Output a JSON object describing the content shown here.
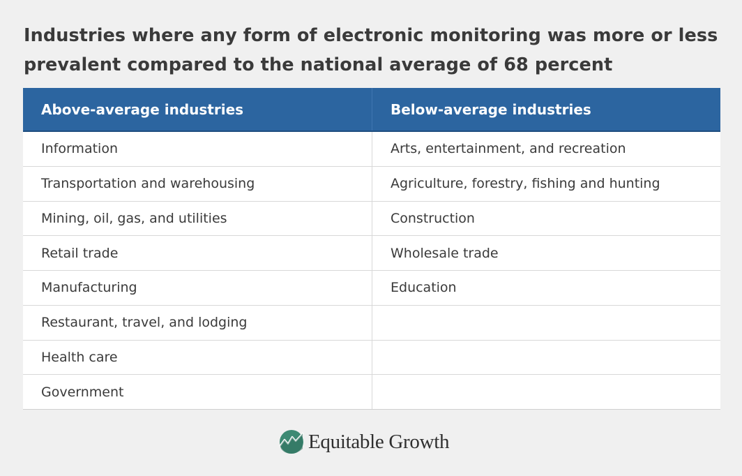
{
  "title": "Industries where any form of electronic monitoring was more or less prevalent compared to the national average of 68 percent",
  "table": {
    "headers": [
      "Above-average industries",
      "Below-average industries"
    ],
    "rows": [
      [
        "Information",
        "Arts, entertainment, and recreation"
      ],
      [
        "Transportation and warehousing",
        "Agriculture, forestry, fishing and hunting"
      ],
      [
        "Mining, oil, gas, and utilities",
        "Construction"
      ],
      [
        "Retail trade",
        "Wholesale trade"
      ],
      [
        "Manufacturing",
        "Education"
      ],
      [
        "Restaurant, travel, and lodging",
        ""
      ],
      [
        "Health care",
        ""
      ],
      [
        "Government",
        ""
      ]
    ]
  },
  "logo": {
    "text": "Equitable Growth",
    "icon": "growth-chart-icon",
    "colors": {
      "mark": "#3d8a73",
      "line": "#ffffff"
    }
  },
  "colors": {
    "header_bg": "#2c65a0",
    "background": "#f0f0f0",
    "text": "#3a3a3a"
  }
}
